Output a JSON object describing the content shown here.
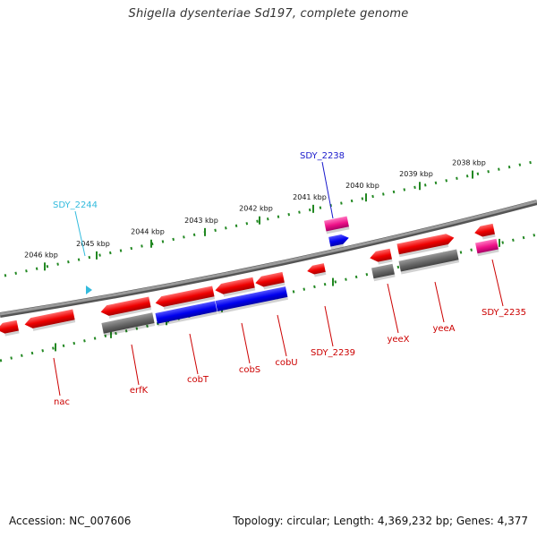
{
  "header": {
    "title": "Shigella dysenteriae Sd197, complete genome"
  },
  "footer": {
    "accession": "Accession: NC_007606",
    "summary": "Topology: circular; Length: 4,369,232 bp; Genes: 4,377"
  },
  "scale": {
    "ticks": [
      {
        "kbp": 2046,
        "label": "2046 kbp"
      },
      {
        "kbp": 2045,
        "label": "2045 kbp"
      },
      {
        "kbp": 2044,
        "label": "2044 kbp"
      },
      {
        "kbp": 2043,
        "label": "2043 kbp"
      },
      {
        "kbp": 2042,
        "label": "2042 kbp"
      },
      {
        "kbp": 2041,
        "label": "2041 kbp"
      },
      {
        "kbp": 2040,
        "label": "2040 kbp"
      },
      {
        "kbp": 2039,
        "label": "2039 kbp"
      },
      {
        "kbp": 2038,
        "label": "2038 kbp"
      }
    ]
  },
  "genes": {
    "labels": [
      {
        "id": "SDY_2244",
        "text": "SDY_2244",
        "color": "#33bbdd"
      },
      {
        "id": "SDY_2238",
        "text": "SDY_2238",
        "color": "#1a1acc"
      },
      {
        "id": "nac",
        "text": "nac",
        "color": "#cc0000"
      },
      {
        "id": "erfK",
        "text": "erfK",
        "color": "#cc0000"
      },
      {
        "id": "cobT",
        "text": "cobT",
        "color": "#cc0000"
      },
      {
        "id": "cobS",
        "text": "cobS",
        "color": "#cc0000"
      },
      {
        "id": "cobU",
        "text": "cobU",
        "color": "#cc0000"
      },
      {
        "id": "SDY_2239",
        "text": "SDY_2239",
        "color": "#cc0000"
      },
      {
        "id": "yeeX",
        "text": "yeeX",
        "color": "#cc0000"
      },
      {
        "id": "yeeA",
        "text": "yeeA",
        "color": "#cc0000"
      },
      {
        "id": "SDY_2235",
        "text": "SDY_2235",
        "color": "#cc0000"
      }
    ]
  },
  "colors": {
    "cds": "#ff0000",
    "gene": "#666666",
    "rna": "#0000ff",
    "pseudo": "#ff1493",
    "misc": "#33bbdd",
    "backbone": "#888888",
    "scale_ticks": "#228822"
  }
}
